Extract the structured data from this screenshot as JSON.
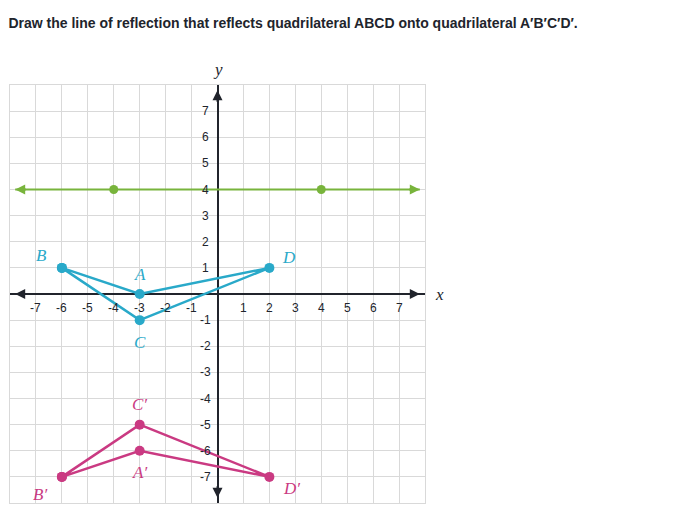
{
  "chart_data": {
    "type": "scatter",
    "title": "Draw the line of reflection that reflects quadrilateral ABCD onto quadrilateral A′B′C′D′.",
    "xlabel": "x",
    "ylabel": "y",
    "xlim": [
      -8,
      8
    ],
    "ylim": [
      -8,
      8
    ],
    "xticks": [
      -7,
      -6,
      -5,
      -4,
      -3,
      -2,
      -1,
      1,
      2,
      3,
      4,
      5,
      6,
      7
    ],
    "yticks": [
      -7,
      -6,
      -5,
      -4,
      -3,
      -2,
      -1,
      1,
      2,
      3,
      4,
      5,
      6,
      7
    ],
    "grid": true,
    "series": [
      {
        "type": "polygon",
        "color": "#29a9c9",
        "marker": "circle",
        "line_style": "solid",
        "x": [
          -6,
          -3,
          2,
          -3
        ],
        "y": [
          1,
          0,
          1,
          -1
        ],
        "labels": [
          "B",
          "A",
          "D",
          "C"
        ]
      },
      {
        "type": "polygon",
        "color": "#ca3a82",
        "marker": "circle",
        "line_style": "solid",
        "x": [
          -6,
          -3,
          2,
          -3
        ],
        "y": [
          -7,
          -5,
          -7,
          -6
        ],
        "labels": [
          "B′",
          "C′",
          "D′",
          "A′"
        ]
      },
      {
        "type": "line",
        "color": "#78b43c",
        "marker": "circle",
        "line_style": "solid",
        "x": [
          -4,
          4
        ],
        "y": [
          4,
          4
        ]
      }
    ]
  }
}
